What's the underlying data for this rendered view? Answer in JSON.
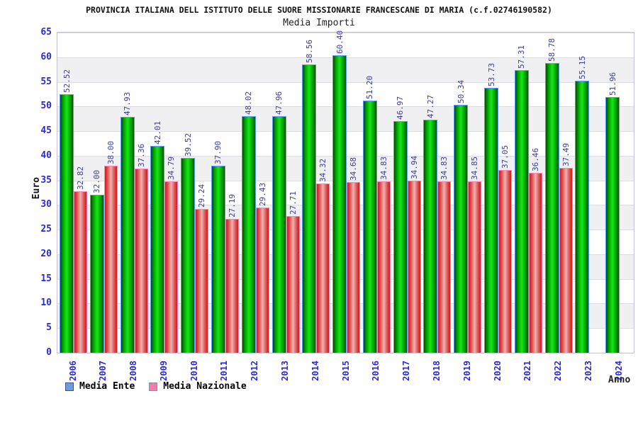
{
  "title": "PROVINCIA ITALIANA DELL ISTITUTO DELLE SUORE MISSIONARIE FRANCESCANE DI MARIA (c.f.02746190582)",
  "subtitle": "Media Importi",
  "chart_data": {
    "type": "bar",
    "categories": [
      "2006",
      "2007",
      "2008",
      "2009",
      "2010",
      "2011",
      "2012",
      "2013",
      "2014",
      "2015",
      "2016",
      "2017",
      "2018",
      "2019",
      "2020",
      "2021",
      "2022",
      "2023",
      "2024"
    ],
    "series": [
      {
        "name": "Media Ente",
        "color": "#00cc00",
        "legend_color": "#6f9bd8",
        "values": [
          52.52,
          32.0,
          47.93,
          42.01,
          39.52,
          37.9,
          48.02,
          47.96,
          58.56,
          60.4,
          51.2,
          46.97,
          47.27,
          50.34,
          53.73,
          57.31,
          58.78,
          55.15,
          51.96
        ]
      },
      {
        "name": "Media Nazionale",
        "color": "#e05252",
        "legend_color": "#ee7fae",
        "values": [
          32.82,
          38.0,
          37.36,
          34.79,
          29.24,
          27.19,
          29.43,
          27.71,
          34.32,
          34.68,
          34.83,
          34.94,
          34.83,
          34.85,
          37.05,
          36.46,
          37.49,
          null,
          null
        ]
      }
    ],
    "title": "Media Importi",
    "xlabel": "Anno",
    "ylabel": "Euro",
    "ylim": [
      0,
      65
    ],
    "ytick_step": 5,
    "yticks": [
      0,
      5,
      10,
      15,
      20,
      25,
      30,
      35,
      40,
      45,
      50,
      55,
      60,
      65
    ],
    "grid": "horizontal-bands",
    "band_color": "#f0f0f3",
    "legend_position": "bottom-left",
    "value_label_color": "#3c3c9e",
    "axis_label_color": "#2a2ad0"
  },
  "legend": {
    "ente_label": "Media Ente",
    "nazionale_label": "Media Nazionale"
  }
}
